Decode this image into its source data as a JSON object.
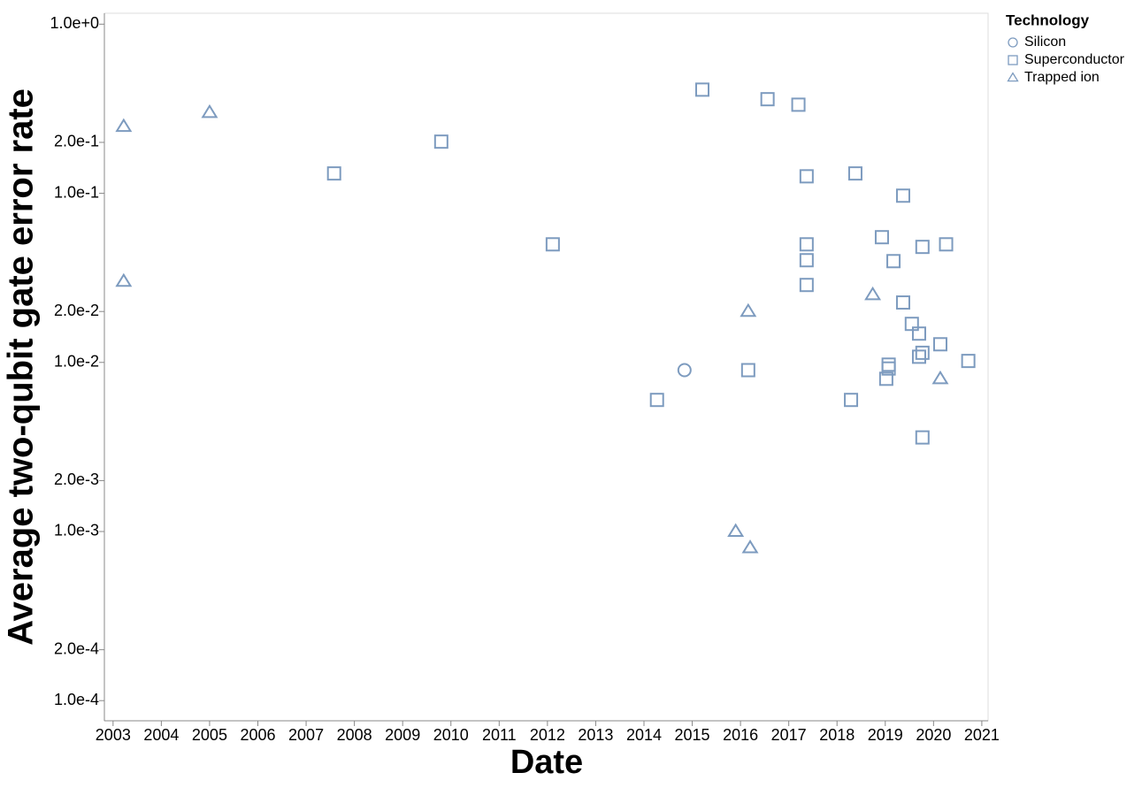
{
  "chart_data": {
    "type": "scatter",
    "x_label": "Date",
    "y_label": "Average two-qubit gate error rate",
    "legend_title": "Technology",
    "legend_position": "right",
    "log_y": true,
    "xlim": [
      2002.82,
      2021.13
    ],
    "xticks": [
      2003,
      2004,
      2005,
      2006,
      2007,
      2008,
      2009,
      2010,
      2011,
      2012,
      2013,
      2014,
      2015,
      2016,
      2017,
      2018,
      2019,
      2020,
      2021
    ],
    "ylim": [
      7.6e-05,
      1.16
    ],
    "yticks": [
      {
        "value": 1,
        "label": "1.0e+0"
      },
      {
        "value": 0.2,
        "label": "2.0e-1"
      },
      {
        "value": 0.1,
        "label": "1.0e-1"
      },
      {
        "value": 0.02,
        "label": "2.0e-2"
      },
      {
        "value": 0.01,
        "label": "1.0e-2"
      },
      {
        "value": 0.002,
        "label": "2.0e-3"
      },
      {
        "value": 0.001,
        "label": "1.0e-3"
      },
      {
        "value": 0.0002,
        "label": "2.0e-4"
      },
      {
        "value": 0.0001,
        "label": "1.0e-4"
      }
    ],
    "series": [
      {
        "name": "Silicon",
        "shape": "circle",
        "color": "#7d9bbf",
        "x": [
          2014.84
        ],
        "values": [
          0.009
        ]
      },
      {
        "name": "Superconductor",
        "shape": "square",
        "color": "#7d9bbf",
        "x": [
          2015.21,
          2016.56,
          2017.2,
          2009.8,
          2007.58,
          2017.37,
          2018.38,
          2019.37,
          2012.11,
          2017.37,
          2017.37,
          2017.37,
          2018.93,
          2019.17,
          2019.77,
          2020.26,
          2019.37,
          2019.55,
          2019.7,
          2020.14,
          2019.77,
          2019.7,
          2020.72,
          2019.07,
          2019.07,
          2019.02,
          2016.16,
          2014.27,
          2018.29,
          2019.77
        ],
        "values": [
          0.41,
          0.36,
          0.334,
          0.202,
          0.131,
          0.126,
          0.131,
          0.0968,
          0.0499,
          0.0499,
          0.0402,
          0.0287,
          0.055,
          0.0397,
          0.0482,
          0.0499,
          0.0226,
          0.0169,
          0.0148,
          0.0128,
          0.0114,
          0.0108,
          0.0102,
          0.0097,
          0.0092,
          0.008,
          0.009,
          0.006,
          0.006,
          0.0036
        ]
      },
      {
        "name": "Trapped ion",
        "shape": "triangle",
        "color": "#7d9bbf",
        "x": [
          2003.22,
          2005.0,
          2003.22,
          2016.16,
          2018.74,
          2020.14,
          2015.9,
          2016.2
        ],
        "values": [
          0.248,
          0.3,
          0.0301,
          0.02,
          0.0251,
          0.008,
          0.001,
          0.0008
        ]
      }
    ]
  }
}
